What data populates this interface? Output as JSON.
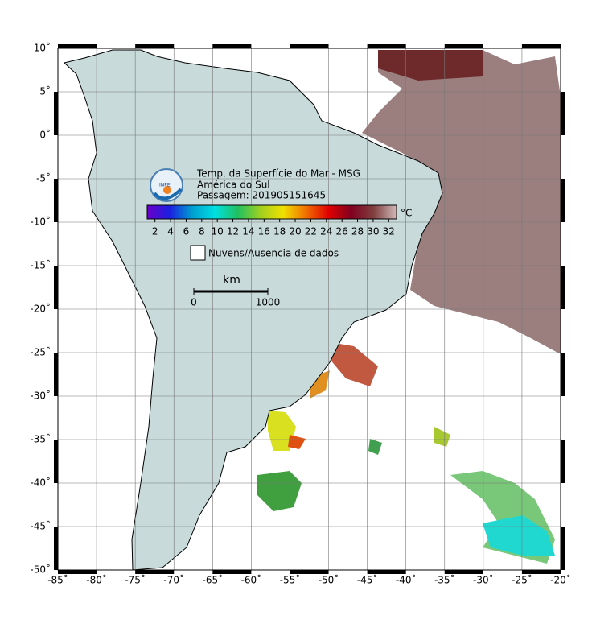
{
  "map": {
    "title": "Temp. da Superfície do Mar - MSG",
    "region": "América do Sul",
    "pass": "Passagem: 201905151645",
    "logo": "INPE",
    "lonlim": [
      -85,
      -20
    ],
    "latlim": [
      -50,
      10
    ],
    "xticks": [
      {
        "value": -85,
        "label": "-85˚"
      },
      {
        "value": -80,
        "label": "-80˚"
      },
      {
        "value": -75,
        "label": "-75˚"
      },
      {
        "value": -70,
        "label": "-70˚"
      },
      {
        "value": -65,
        "label": "-65˚"
      },
      {
        "value": -60,
        "label": "-60˚"
      },
      {
        "value": -55,
        "label": "-55˚"
      },
      {
        "value": -50,
        "label": "-50˚"
      },
      {
        "value": -45,
        "label": "-45˚"
      },
      {
        "value": -40,
        "label": "-40˚"
      },
      {
        "value": -35,
        "label": "-35˚"
      },
      {
        "value": -30,
        "label": "-30˚"
      },
      {
        "value": -25,
        "label": "-25˚"
      },
      {
        "value": -20,
        "label": "-20˚"
      }
    ],
    "yticks": [
      {
        "value": 10,
        "label": "10˚"
      },
      {
        "value": 5,
        "label": "5˚"
      },
      {
        "value": 0,
        "label": "0˚"
      },
      {
        "value": -5,
        "label": "-5˚"
      },
      {
        "value": -10,
        "label": "-10˚"
      },
      {
        "value": -15,
        "label": "-15˚"
      },
      {
        "value": -20,
        "label": "-20˚"
      },
      {
        "value": -25,
        "label": "-25˚"
      },
      {
        "value": -30,
        "label": "-30˚"
      },
      {
        "value": -35,
        "label": "-35˚"
      },
      {
        "value": -40,
        "label": "-40˚"
      },
      {
        "value": -45,
        "label": "-45˚"
      },
      {
        "value": -50,
        "label": "-50˚"
      }
    ],
    "grid": true,
    "colorbar": {
      "unit": "°C",
      "lim": [
        1,
        33
      ],
      "ticks": [
        2,
        4,
        6,
        8,
        10,
        12,
        14,
        16,
        18,
        20,
        22,
        24,
        26,
        28,
        30,
        32
      ],
      "colormap": [
        "#6a00c8",
        "#1a20e0",
        "#00a0d0",
        "#00e0e0",
        "#20c060",
        "#a0d020",
        "#f0e000",
        "#f07000",
        "#e00000",
        "#800020",
        "#804040",
        "#d0b8b8"
      ]
    },
    "legend": "Nuvens/Ausencia de dados",
    "scale": {
      "unit": "km",
      "ticks": [
        0,
        1000
      ]
    }
  }
}
